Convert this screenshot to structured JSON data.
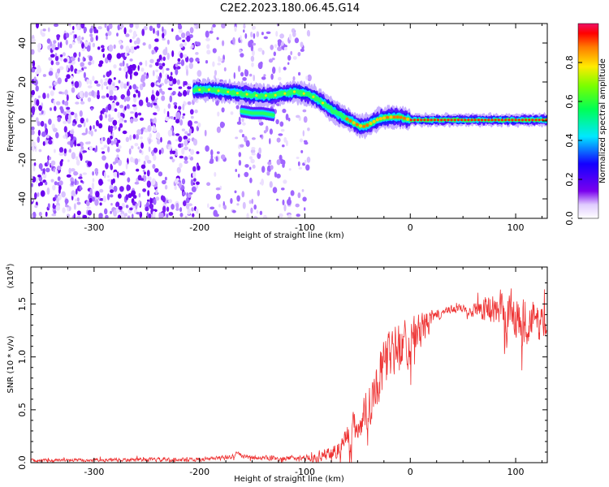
{
  "title": "C2E2.2023.180.06.45.G14",
  "chart_data": [
    {
      "type": "heatmap",
      "name": "spectrogram",
      "xlabel": "Height of straight line (km)",
      "ylabel": "Frequency (Hz)",
      "xlim": [
        -360,
        130
      ],
      "ylim": [
        -50,
        50
      ],
      "xticks": [
        -300,
        -200,
        -100,
        0,
        100
      ],
      "yticks": [
        -40,
        -20,
        0,
        20,
        40
      ],
      "xtick_labels": [
        "-300",
        "-200",
        "-100",
        "0",
        "100"
      ],
      "ytick_labels": [
        "-40",
        "-20",
        "0",
        "20",
        "40"
      ],
      "noise_regions_km": [
        [
          -360,
          -200
        ],
        [
          -195,
          -175
        ],
        [
          -170,
          -95
        ]
      ],
      "ridge": {
        "x": [
          -205,
          -190,
          -175,
          -160,
          -145,
          -130,
          -120,
          -110,
          -100,
          -90,
          -80,
          -70,
          -60,
          -50,
          -45,
          -40,
          -30,
          -20,
          -10,
          0,
          20,
          60,
          100,
          130
        ],
        "y": [
          16,
          16,
          15,
          14,
          13,
          13,
          14,
          15,
          14,
          12,
          8,
          4,
          1,
          -2,
          -3,
          -2,
          1,
          2,
          2,
          0.5,
          0.5,
          0.5,
          0.5,
          0.5
        ]
      },
      "side_branch": {
        "x": [
          -160,
          -150,
          -140,
          -130
        ],
        "y": [
          5,
          4,
          4,
          3
        ]
      },
      "colorbar": {
        "label": "Normalized spectral amplitude",
        "ticks": [
          0.0,
          0.2,
          0.4,
          0.6,
          0.8
        ],
        "tick_labels": [
          "0.0",
          "0.2",
          "0.4",
          "0.6",
          "0.8"
        ],
        "range": [
          0,
          1
        ]
      }
    },
    {
      "type": "line",
      "name": "snr",
      "xlabel": "Height of straight line (km)",
      "ylabel": "SNR (10 * v/v)",
      "scale_label": "(x10",
      "scale_exp": "4",
      "scale_close": ")",
      "xlim": [
        -360,
        130
      ],
      "ylim": [
        0,
        1.85
      ],
      "xticks": [
        -300,
        -200,
        -100,
        0,
        100
      ],
      "yticks": [
        0.0,
        0.5,
        1.0,
        1.5
      ],
      "xtick_labels": [
        "-300",
        "-200",
        "-100",
        "0",
        "100"
      ],
      "ytick_labels": [
        "0.0",
        "0.5",
        "1.0",
        "1.5"
      ],
      "color": "#ee3333",
      "envelope": {
        "x": [
          -360,
          -200,
          -170,
          -165,
          -155,
          -120,
          -90,
          -70,
          -60,
          -50,
          -40,
          -30,
          -20,
          -10,
          0,
          10,
          20,
          30,
          40,
          60,
          80,
          90,
          100,
          110,
          120,
          130
        ],
        "y": [
          0.02,
          0.03,
          0.05,
          0.09,
          0.05,
          0.04,
          0.05,
          0.12,
          0.25,
          0.35,
          0.55,
          0.8,
          1.0,
          1.1,
          1.15,
          1.25,
          1.35,
          1.42,
          1.45,
          1.46,
          1.45,
          1.42,
          1.4,
          1.35,
          1.33,
          1.32
        ]
      },
      "noise": {
        "x": [
          -360,
          -100,
          -70,
          -40,
          -20,
          0,
          30,
          50,
          80,
          100,
          130
        ],
        "amp": [
          0.02,
          0.03,
          0.12,
          0.3,
          0.35,
          0.3,
          0.05,
          0.06,
          0.2,
          0.35,
          0.2
        ]
      }
    }
  ]
}
